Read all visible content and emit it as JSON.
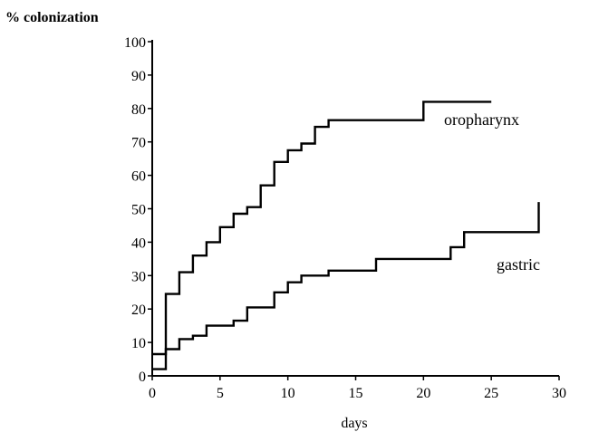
{
  "chart_data": {
    "type": "line",
    "step": true,
    "ylabel": "% colonization",
    "xlabel": "days",
    "xlim": [
      0,
      30
    ],
    "ylim": [
      0,
      100
    ],
    "x_ticks": [
      0,
      5,
      10,
      15,
      20,
      25,
      30
    ],
    "y_ticks": [
      0,
      10,
      20,
      30,
      40,
      50,
      60,
      70,
      80,
      90,
      100
    ],
    "grid": false,
    "legend": "none",
    "series": [
      {
        "name": "oropharynx",
        "color": "#000000",
        "points": [
          [
            0,
            6.5
          ],
          [
            1,
            6.5
          ],
          [
            1,
            24.5
          ],
          [
            2,
            24.5
          ],
          [
            2,
            31
          ],
          [
            3,
            31
          ],
          [
            3,
            36
          ],
          [
            4,
            36
          ],
          [
            4,
            40
          ],
          [
            5,
            40
          ],
          [
            5,
            44.5
          ],
          [
            6,
            44.5
          ],
          [
            6,
            48.5
          ],
          [
            7,
            48.5
          ],
          [
            7,
            50.5
          ],
          [
            8,
            50.5
          ],
          [
            8,
            57
          ],
          [
            9,
            57
          ],
          [
            9,
            64
          ],
          [
            10,
            64
          ],
          [
            10,
            67.5
          ],
          [
            11,
            67.5
          ],
          [
            11,
            69.5
          ],
          [
            12,
            69.5
          ],
          [
            12,
            74.5
          ],
          [
            13,
            74.5
          ],
          [
            13,
            76.5
          ],
          [
            20,
            76.5
          ],
          [
            20,
            82
          ],
          [
            25,
            82
          ]
        ]
      },
      {
        "name": "gastric",
        "color": "#000000",
        "points": [
          [
            0,
            2
          ],
          [
            1,
            2
          ],
          [
            1,
            8
          ],
          [
            2,
            8
          ],
          [
            2,
            11
          ],
          [
            3,
            11
          ],
          [
            3,
            12
          ],
          [
            4,
            12
          ],
          [
            4,
            15
          ],
          [
            6,
            15
          ],
          [
            6,
            16.5
          ],
          [
            7,
            16.5
          ],
          [
            7,
            20.5
          ],
          [
            9,
            20.5
          ],
          [
            9,
            25
          ],
          [
            10,
            25
          ],
          [
            10,
            28
          ],
          [
            11,
            28
          ],
          [
            11,
            30
          ],
          [
            13,
            30
          ],
          [
            13,
            31.5
          ],
          [
            16.5,
            31.5
          ],
          [
            16.5,
            35
          ],
          [
            22,
            35
          ],
          [
            22,
            38.5
          ],
          [
            23,
            38.5
          ],
          [
            23,
            43
          ],
          [
            28.5,
            43
          ],
          [
            28.5,
            52
          ]
        ]
      }
    ]
  }
}
